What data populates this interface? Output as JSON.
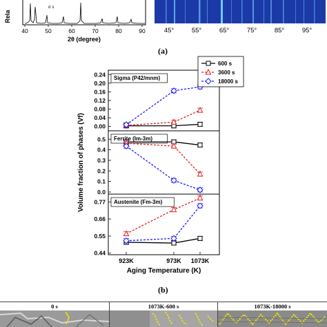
{
  "panel_a": {
    "label": "(a)",
    "ylabel_fragment": "Rela",
    "xrd_phase_label": "σ s",
    "xrd_xlabel": "2θ (degree)",
    "xrd_xticks": [
      40,
      50,
      60,
      70,
      80,
      90
    ],
    "heatmap_xticks": [
      "45°",
      "55°",
      "65°",
      "75°",
      "85°",
      "95°"
    ]
  },
  "panel_b": {
    "label": "(b)"
  },
  "panel_c": {
    "headers": [
      "0 s",
      "1073K-600 s",
      "1073K-18000 s"
    ]
  },
  "colors": {
    "s600": "#000000",
    "s3600": "#e02020",
    "s18000": "#1a1aff",
    "heatmap_bg": "#1b3aa8",
    "phase_overlay": "#f2e600"
  },
  "chart_data": {
    "type": "line",
    "title": "",
    "xlabel": "Aging Temperature (K)",
    "ylabel": "Volume fraction of phases (Vf)",
    "categories": [
      "923K",
      "973K",
      "1073K"
    ],
    "legend": {
      "placement": "top-right",
      "entries": [
        "600 s",
        "3600 s",
        "18000 s"
      ]
    },
    "subplots": [
      {
        "name": "Sigma (P42/mnm)",
        "ylim": [
          -0.02,
          0.26
        ],
        "yticks": [
          0.0,
          0.04,
          0.08,
          0.12,
          0.16,
          0.2,
          0.24
        ],
        "series": [
          {
            "name": "600 s",
            "values": [
              0.003,
              0.003,
              0.01
            ]
          },
          {
            "name": "3600 s",
            "values": [
              0.005,
              0.02,
              0.075
            ]
          },
          {
            "name": "18000 s",
            "values": [
              0.008,
              0.165,
              0.183
            ]
          }
        ]
      },
      {
        "name": "Ferrite (Im-3m)",
        "ylim": [
          -0.02,
          0.58
        ],
        "yticks": [
          0.0,
          0.1,
          0.2,
          0.3,
          0.4,
          0.5
        ],
        "series": [
          {
            "name": "600 s",
            "values": [
              0.475,
              0.475,
              0.445
            ]
          },
          {
            "name": "3600 s",
            "values": [
              0.462,
              0.435,
              0.17
            ]
          },
          {
            "name": "18000 s",
            "values": [
              0.435,
              0.11,
              0.02
            ]
          }
        ]
      },
      {
        "name": "Austenite (Fm-3m)",
        "ylim": [
          0.43,
          0.82
        ],
        "yticks": [
          0.44,
          0.55,
          0.66,
          0.77
        ],
        "series": [
          {
            "name": "600 s",
            "values": [
              0.51,
              0.505,
              0.535
            ]
          },
          {
            "name": "3600 s",
            "values": [
              0.565,
              0.72,
              0.795
            ]
          },
          {
            "name": "18000 s",
            "values": [
              0.52,
              0.535,
              0.745
            ]
          }
        ]
      }
    ]
  }
}
